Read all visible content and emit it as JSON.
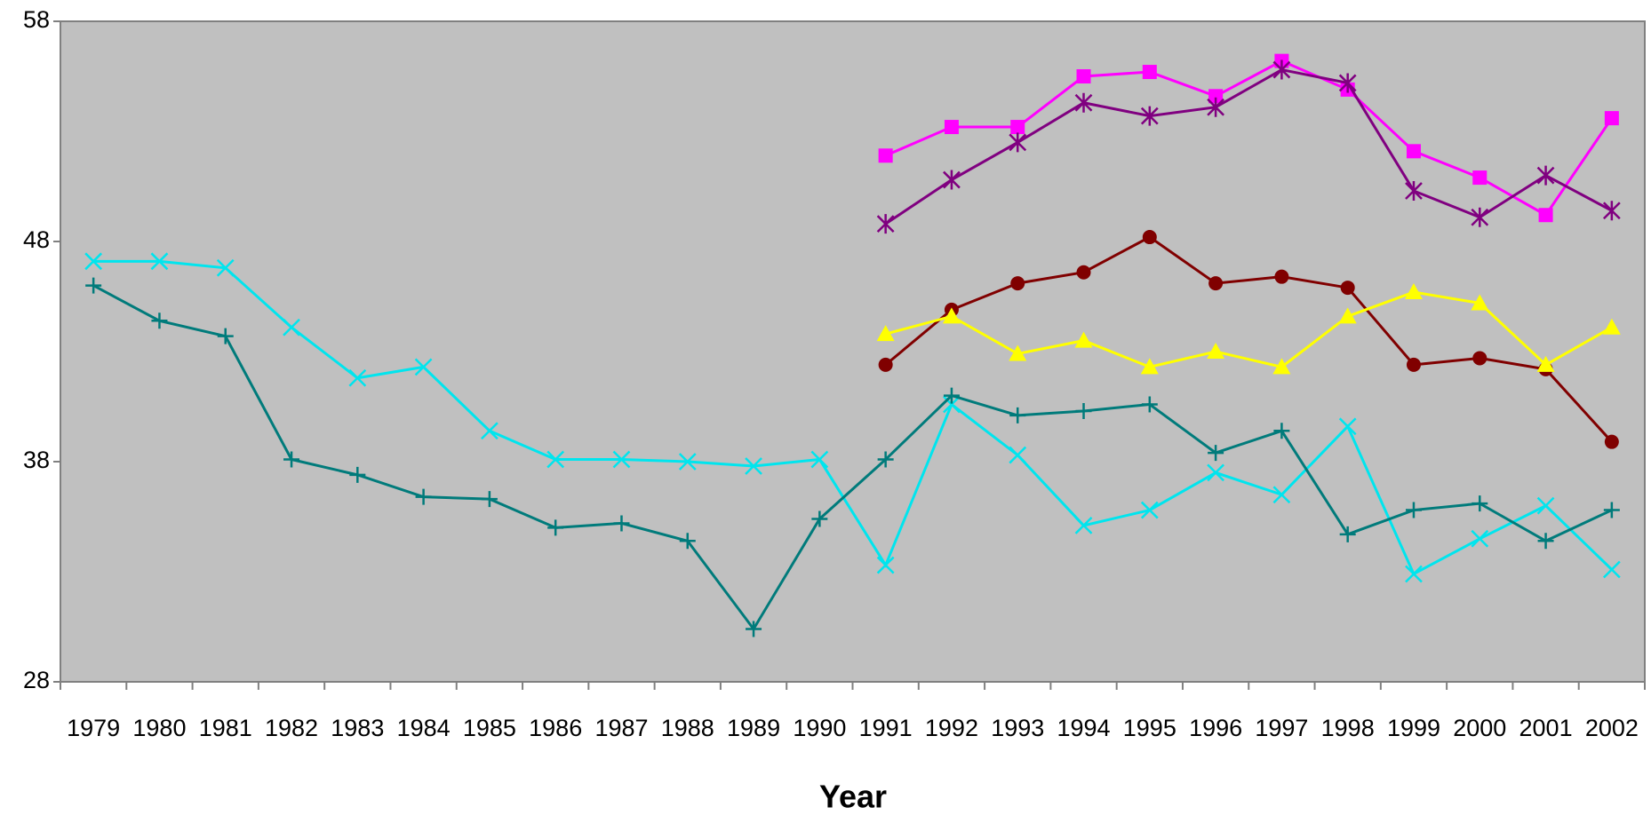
{
  "chart_data": {
    "type": "line",
    "x_label": "Year",
    "categories": [
      "1979",
      "1980",
      "1981",
      "1982",
      "1983",
      "1984",
      "1985",
      "1986",
      "1987",
      "1988",
      "1989",
      "1990",
      "1991",
      "1992",
      "1993",
      "1994",
      "1995",
      "1996",
      "1997",
      "1998",
      "1999",
      "2000",
      "2001",
      "2002"
    ],
    "ylim": [
      28,
      58
    ],
    "yticks": [
      28,
      38,
      48,
      58
    ],
    "series": [
      {
        "color": "#00e5ee",
        "marker": "x",
        "values": [
          47.1,
          47.1,
          46.8,
          44.1,
          41.8,
          42.3,
          39.4,
          38.1,
          38.1,
          38.0,
          37.8,
          38.1,
          33.3,
          40.6,
          38.3,
          35.1,
          35.8,
          37.5,
          36.5,
          39.6,
          32.9,
          34.5,
          36.0,
          33.1
        ]
      },
      {
        "color": "#007b7b",
        "marker": "plus",
        "values": [
          46.0,
          44.4,
          43.7,
          38.1,
          37.4,
          36.4,
          36.3,
          35.0,
          35.2,
          34.4,
          30.4,
          35.4,
          38.1,
          41.0,
          40.1,
          40.3,
          40.6,
          38.4,
          39.4,
          34.7,
          35.8,
          36.1,
          34.4,
          35.8
        ]
      },
      {
        "color": "#ff00ff",
        "marker": "square",
        "values": [
          null,
          null,
          null,
          null,
          null,
          null,
          null,
          null,
          null,
          null,
          null,
          null,
          51.9,
          53.2,
          53.2,
          55.5,
          55.7,
          54.6,
          56.2,
          54.9,
          52.1,
          50.9,
          49.2,
          53.6
        ]
      },
      {
        "color": "#800080",
        "marker": "star",
        "values": [
          null,
          null,
          null,
          null,
          null,
          null,
          null,
          null,
          null,
          null,
          null,
          null,
          48.8,
          50.8,
          52.5,
          54.3,
          53.7,
          54.1,
          55.8,
          55.2,
          50.3,
          49.1,
          51.0,
          49.4
        ]
      },
      {
        "color": "#800000",
        "marker": "circle",
        "values": [
          null,
          null,
          null,
          null,
          null,
          null,
          null,
          null,
          null,
          null,
          null,
          null,
          42.4,
          44.9,
          46.1,
          46.6,
          48.2,
          46.1,
          46.4,
          45.9,
          42.4,
          42.7,
          42.2,
          38.9
        ]
      },
      {
        "color": "#ffff00",
        "marker": "triangle",
        "values": [
          null,
          null,
          null,
          null,
          null,
          null,
          null,
          null,
          null,
          null,
          null,
          null,
          43.8,
          44.6,
          42.9,
          43.5,
          42.3,
          43.0,
          42.3,
          44.6,
          45.7,
          45.2,
          42.4,
          44.1
        ]
      }
    ]
  }
}
